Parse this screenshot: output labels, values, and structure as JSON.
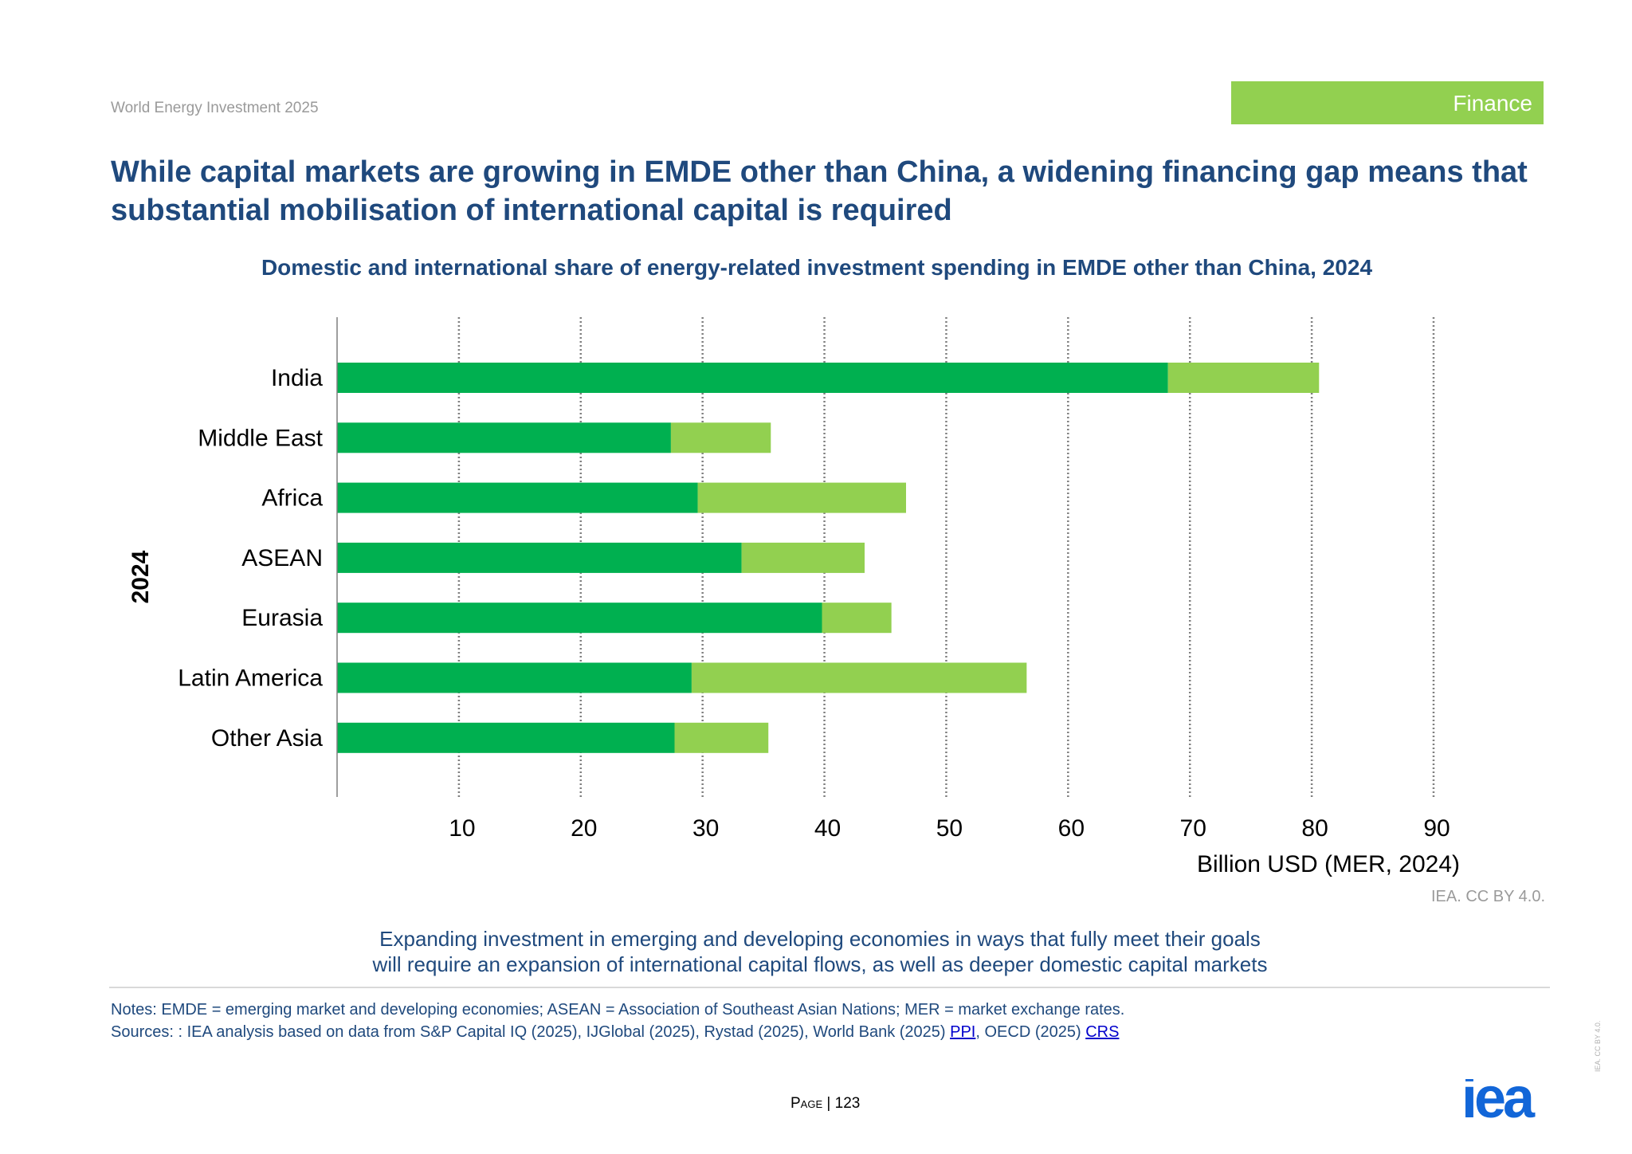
{
  "header": {
    "report_name": "World Energy Investment 2025",
    "section": "Finance"
  },
  "headline": "While capital markets are growing in EMDE other than China, a widening financing gap means that substantial mobilisation of international capital is required",
  "chart_data": {
    "type": "bar",
    "orientation": "horizontal",
    "stacked": true,
    "title": "Domestic and international share of energy-related investment spending in EMDE other than China, 2024",
    "group_label": "2024",
    "xlabel": "Billion USD (MER, 2024)",
    "xlim": [
      0,
      90
    ],
    "xticks": [
      10,
      20,
      30,
      40,
      50,
      60,
      70,
      80,
      90
    ],
    "grid": true,
    "legend": "none",
    "categories": [
      "India",
      "Middle East",
      "Africa",
      "ASEAN",
      "Eurasia",
      "Latin America",
      "Other Asia"
    ],
    "series": [
      {
        "color": "#00b050",
        "values": [
          68.2,
          27.4,
          29.6,
          33.2,
          39.8,
          29.1,
          27.7
        ]
      },
      {
        "color": "#92d050",
        "values": [
          12.4,
          8.2,
          17.1,
          10.1,
          5.7,
          27.5,
          7.7
        ]
      }
    ]
  },
  "credit": "IEA. CC BY 4.0.",
  "caption": {
    "line1": "Expanding investment in emerging and developing economies in ways that fully meet their goals",
    "line2": "will require an expansion of international capital flows, as well as deeper domestic capital markets"
  },
  "notes": {
    "notes_line": "Notes: EMDE = emerging market and developing economies; ASEAN = Association of Southeast Asian Nations; MER = market exchange rates.",
    "sources_prefix": "Sources: : IEA analysis based on data from S&P Capital IQ (2025), IJGlobal (2025), Rystad (2025), World Bank (2025) ",
    "link1": "PPI",
    "sources_mid": ", OECD (2025) ",
    "link2": "CRS"
  },
  "footer": {
    "page_word": "Page",
    "page_sep": " | ",
    "page_number": "123",
    "logo_text": "iea",
    "license_vertical": "IEA. CC BY 4.0."
  },
  "colors": {
    "accent": "#92d050",
    "headline": "#1f497d",
    "logo": "#1266d8"
  }
}
